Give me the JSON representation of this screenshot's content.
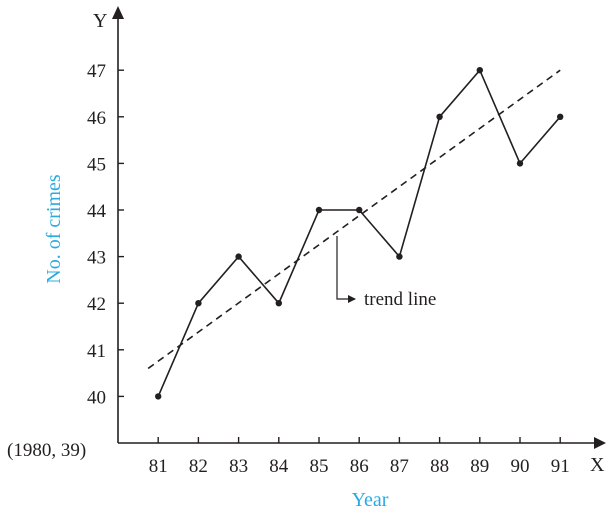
{
  "chart_data": {
    "type": "line",
    "x": [
      81,
      82,
      83,
      84,
      85,
      86,
      87,
      88,
      89,
      90,
      91
    ],
    "x_tick_labels": [
      "81",
      "82",
      "83",
      "84",
      "85",
      "86",
      "87",
      "88",
      "89",
      "90",
      "91"
    ],
    "series": [
      {
        "values": [
          40,
          42,
          43,
          42,
          44,
          44,
          43,
          46,
          47,
          45,
          46
        ]
      }
    ],
    "trend_line": {
      "x": [
        80.75,
        91
      ],
      "y": [
        40.6,
        47
      ]
    },
    "y_ticks": [
      40,
      41,
      42,
      43,
      44,
      45,
      46,
      47
    ],
    "y_tick_labels": [
      "40",
      "41",
      "42",
      "43",
      "44",
      "45",
      "46",
      "47"
    ],
    "xlim": [
      80,
      92
    ],
    "ylim": [
      39,
      48
    ],
    "origin_label": "(1980, 39)",
    "x_axis_letter": "X",
    "y_axis_letter": "Y",
    "xlabel": "Year",
    "ylabel": "No. of crimes",
    "annotation": "trend line",
    "grid": false,
    "colors": {
      "axis": "#231f20",
      "label_accent": "#29abe2",
      "line": "#231f20"
    }
  }
}
